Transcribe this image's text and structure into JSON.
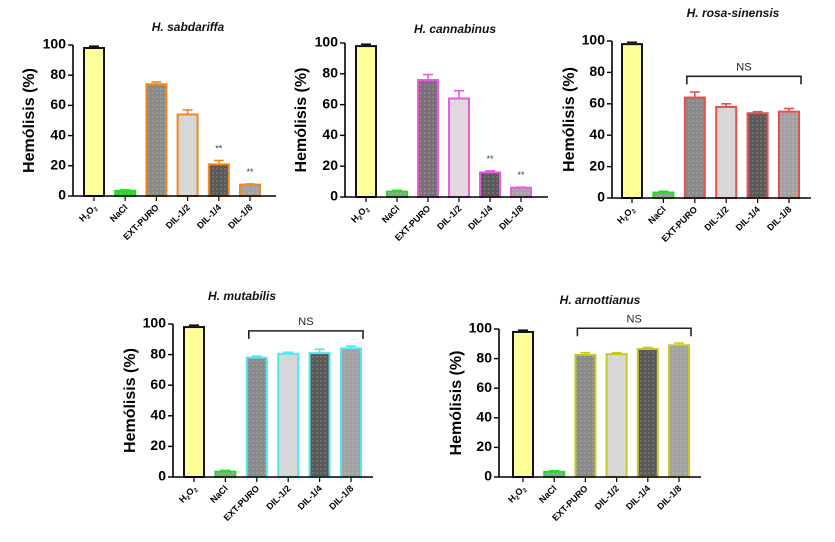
{
  "chart_data": [
    {
      "type": "bar",
      "title": "H. sabdariffa",
      "xlabel": "",
      "ylabel": "Hemólisis (%)",
      "ylim": [
        0,
        100
      ],
      "yticks": [
        0,
        20,
        40,
        60,
        80,
        100
      ],
      "categories": [
        "H2O2",
        "NaCl",
        "EXT-PURO",
        "DIL-1/2",
        "DIL-1/4",
        "DIL-1/8"
      ],
      "values": [
        98,
        3.5,
        74,
        54,
        21,
        7.5
      ],
      "errors": [
        1.2,
        0.5,
        1.5,
        3,
        2.5,
        0.5
      ],
      "annotations": [
        "",
        "",
        "",
        "",
        "**",
        "**"
      ],
      "bracket_label": "",
      "accent_color": "#f08a20",
      "grid": false
    },
    {
      "type": "bar",
      "title": "H. cannabinus",
      "xlabel": "",
      "ylabel": "Hemólisis (%)",
      "ylim": [
        0,
        100
      ],
      "yticks": [
        0,
        20,
        40,
        60,
        80,
        100
      ],
      "categories": [
        "H2O2",
        "NaCl",
        "EXT-PURO",
        "DIL-1/2",
        "DIL-1/4",
        "DIL-1/8"
      ],
      "values": [
        98,
        3.5,
        76,
        64,
        16,
        6
      ],
      "errors": [
        1.2,
        0.8,
        3.5,
        5,
        1,
        0.4
      ],
      "annotations": [
        "",
        "",
        "",
        "",
        "**",
        "**"
      ],
      "bracket_label": "",
      "accent_color": "#e85ce0",
      "grid": false
    },
    {
      "type": "bar",
      "title": "H. rosa-sinensis",
      "xlabel": "",
      "ylabel": "Hemólisis (%)",
      "ylim": [
        0,
        100
      ],
      "yticks": [
        0,
        20,
        40,
        60,
        80,
        100
      ],
      "categories": [
        "H2O2",
        "NaCl",
        "EXT-PURO",
        "DIL-1/2",
        "DIL-1/4",
        "DIL-1/8"
      ],
      "values": [
        98,
        3.5,
        64,
        58,
        54,
        55
      ],
      "errors": [
        1.2,
        0.8,
        3.5,
        2,
        1,
        2
      ],
      "annotations": [
        "",
        "",
        "",
        "",
        "",
        ""
      ],
      "bracket_label": "NS",
      "accent_color": "#e85050",
      "grid": false
    },
    {
      "type": "bar",
      "title": "H. mutabilis",
      "xlabel": "",
      "ylabel": "Hemólisis (%)",
      "ylim": [
        0,
        100
      ],
      "yticks": [
        0,
        20,
        40,
        60,
        80,
        100
      ],
      "categories": [
        "H2O2",
        "NaCl",
        "EXT-PURO",
        "DIL-1/2",
        "DIL-1/4",
        "DIL-1/8"
      ],
      "values": [
        98,
        3.5,
        78,
        80.5,
        81,
        84
      ],
      "errors": [
        1.2,
        0.8,
        1,
        1,
        2.5,
        1.5
      ],
      "annotations": [
        "",
        "",
        "",
        "",
        "",
        ""
      ],
      "bracket_label": "NS",
      "accent_color": "#4ee8ee",
      "grid": false
    },
    {
      "type": "bar",
      "title": "H. arnottianus",
      "xlabel": "",
      "ylabel": "Hemólisis (%)",
      "ylim": [
        0,
        100
      ],
      "yticks": [
        0,
        20,
        40,
        60,
        80,
        100
      ],
      "categories": [
        "H2O2",
        "NaCl",
        "EXT-PURO",
        "DIL-1/2",
        "DIL-1/4",
        "DIL-1/8"
      ],
      "values": [
        98,
        3.5,
        82.5,
        83,
        86.5,
        89
      ],
      "errors": [
        1.2,
        0.8,
        1.5,
        1,
        1,
        1.5
      ],
      "annotations": [
        "",
        "",
        "",
        "",
        "",
        ""
      ],
      "bracket_label": "NS",
      "accent_color": "#c8c820",
      "grid": false
    }
  ],
  "colors": {
    "h2o2_fill": "#ffff99",
    "h2o2_stroke": "#111111",
    "nacl_fill": "#9a9a9a",
    "nacl_stroke": "#22dd22",
    "group_fills": [
      "#8a8a8a",
      "#d6d6d6",
      "#5a5a5a",
      "#a2a2a2"
    ]
  }
}
